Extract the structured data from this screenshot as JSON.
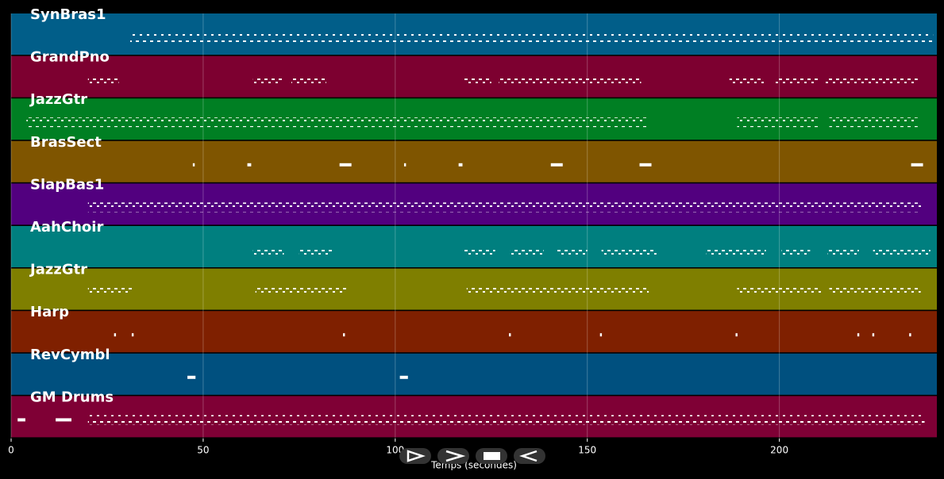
{
  "chart_data": {
    "type": "timeline",
    "xlabel": "Temps (secondes)",
    "xlim": [
      0,
      241
    ],
    "xticks": [
      0,
      50,
      100,
      150,
      200
    ],
    "grid": true,
    "tracks": [
      {
        "name": "SynBras1",
        "color": "#015e89",
        "segments": [
          [
            31,
            240
          ]
        ]
      },
      {
        "name": "GrandPno",
        "color": "#7d0030",
        "segments": [
          [
            20,
            28
          ],
          [
            63,
            70.5
          ],
          [
            73,
            82
          ],
          [
            118,
            125
          ],
          [
            127,
            142
          ],
          [
            142,
            164
          ],
          [
            187,
            196
          ],
          [
            199,
            210
          ],
          [
            212,
            236
          ]
        ]
      },
      {
        "name": "JazzGtr",
        "color": "#007f23",
        "segments": [
          [
            4,
            165.5
          ],
          [
            189,
            210
          ],
          [
            213,
            236
          ]
        ]
      },
      {
        "name": "BrasSect",
        "color": "#7f5500",
        "segments": [
          [
            47.3,
            47.8
          ],
          [
            61.5,
            62.5
          ],
          [
            85.5,
            88.6
          ],
          [
            102.3,
            102.8
          ],
          [
            116.5,
            117.5
          ],
          [
            140.5,
            143.6
          ],
          [
            163.6,
            166.7
          ],
          [
            234.3,
            237.4
          ]
        ]
      },
      {
        "name": "SlapBas1",
        "color": "#52007f",
        "segments": [
          [
            20,
            237
          ]
        ]
      },
      {
        "name": "AahChoir",
        "color": "#007f7f",
        "segments": [
          [
            63,
            71
          ],
          [
            75,
            83.5
          ],
          [
            118,
            126
          ],
          [
            130,
            138.6
          ],
          [
            142,
            150
          ],
          [
            153.7,
            168
          ],
          [
            181,
            196.5
          ],
          [
            200.6,
            208
          ],
          [
            212.6,
            220.7
          ],
          [
            224.4,
            239.3
          ]
        ]
      },
      {
        "name": "JazzGtr",
        "color": "#7f7f00",
        "segments": [
          [
            20,
            31.6
          ],
          [
            63.6,
            87.2
          ],
          [
            118.6,
            166
          ],
          [
            189,
            211
          ],
          [
            213,
            236.8
          ]
        ]
      },
      {
        "name": "Harp",
        "color": "#7f2000",
        "segments": [
          [
            26.8,
            27.3
          ],
          [
            31.4,
            31.9
          ],
          [
            86.4,
            86.9
          ],
          [
            129.6,
            130.1
          ],
          [
            153.3,
            153.8
          ],
          [
            188.6,
            189.1
          ],
          [
            220.3,
            220.8
          ],
          [
            224.2,
            224.7
          ],
          [
            233.8,
            234.3
          ]
        ]
      },
      {
        "name": "RevCymbl",
        "color": "#00507f",
        "segments": [
          [
            45.9,
            48
          ],
          [
            101.2,
            103.3
          ]
        ]
      },
      {
        "name": "GM Drums",
        "color": "#7f0035",
        "segments": [
          [
            1.7,
            3.7
          ],
          [
            11.6,
            15.7
          ],
          [
            20,
            237.8
          ]
        ]
      }
    ]
  }
}
